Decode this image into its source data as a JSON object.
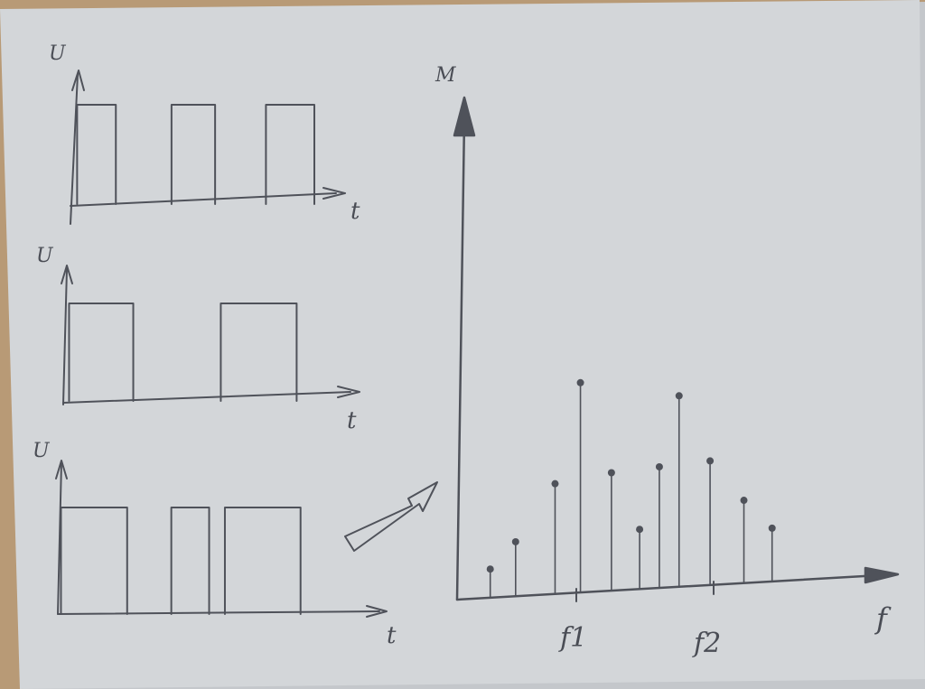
{
  "colors": {
    "paper": "#d3d6d9",
    "paper_shadow": "#c4c7cb",
    "table": "#b89a76",
    "pencil": "#4f525a"
  },
  "signal_plots": [
    {
      "y_label": "U",
      "x_label": "t",
      "pulses": [
        [
          0.02,
          0.18
        ],
        [
          0.41,
          0.59
        ],
        [
          0.8,
          1.0
        ]
      ]
    },
    {
      "y_label": "U",
      "x_label": "t",
      "pulses": [
        [
          0.02,
          0.24
        ],
        [
          0.54,
          0.8
        ]
      ]
    },
    {
      "y_label": "U",
      "x_label": "t",
      "pulses": [
        [
          0.01,
          0.22
        ],
        [
          0.36,
          0.48
        ],
        [
          0.53,
          0.77
        ]
      ]
    }
  ],
  "spectrum": {
    "y_label": "M",
    "x_label": "f",
    "tick_labels": [
      "f1",
      "f2"
    ],
    "lines": [
      {
        "f": 0.06,
        "m": 0.12
      },
      {
        "f": 0.15,
        "m": 0.23
      },
      {
        "f": 0.29,
        "m": 0.47
      },
      {
        "f": 0.38,
        "m": 0.9
      },
      {
        "f": 0.49,
        "m": 0.51
      },
      {
        "f": 0.59,
        "m": 0.26
      },
      {
        "f": 0.66,
        "m": 0.53
      },
      {
        "f": 0.73,
        "m": 0.84
      },
      {
        "f": 0.84,
        "m": 0.55
      },
      {
        "f": 0.96,
        "m": 0.37
      },
      {
        "f": 1.06,
        "m": 0.24
      }
    ]
  }
}
